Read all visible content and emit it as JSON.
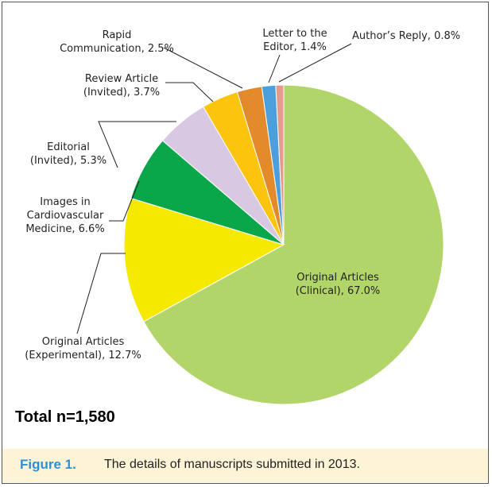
{
  "chart_data": {
    "type": "pie",
    "title": "",
    "slices": [
      {
        "label": "Original Articles\n(Clinical), 67.0%",
        "value": 67.0,
        "color": "#b2d56a"
      },
      {
        "label": "Original Articles\n(Experimental), 12.7%",
        "value": 12.7,
        "color": "#f6e900"
      },
      {
        "label": "Images in\nCardiovascular\nMedicine, 6.6%",
        "value": 6.6,
        "color": "#09a64a"
      },
      {
        "label": "Editorial\n(Invited), 5.3%",
        "value": 5.3,
        "color": "#d8c8e2"
      },
      {
        "label": "Review Article\n(Invited), 3.7%",
        "value": 3.7,
        "color": "#fcc40c"
      },
      {
        "label": "Rapid\nCommunication, 2.5%",
        "value": 2.5,
        "color": "#e38a2b"
      },
      {
        "label": "Letter to the\nEditor, 1.4%",
        "value": 1.4,
        "color": "#4a9fdc"
      },
      {
        "label": "Author’s Reply, 0.8%",
        "value": 0.8,
        "color": "#e69a8b"
      }
    ],
    "start_angle": "12 o'clock",
    "direction": "clockwise"
  },
  "total_note": "Total n=1,580",
  "caption": {
    "label": "Figure 1.",
    "text": "The details of manuscripts submitted in 2013."
  }
}
